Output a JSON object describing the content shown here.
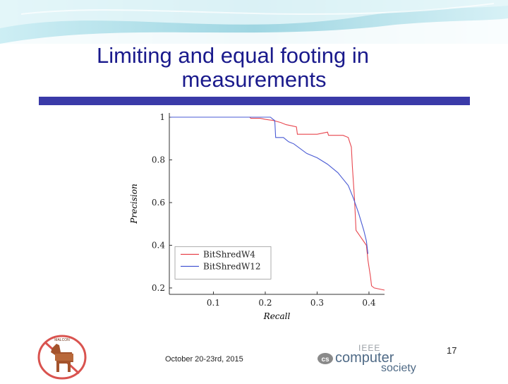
{
  "slide": {
    "title_line1": "Limiting and equal footing in",
    "title_line2": "measurements",
    "footer_date": "October 20-23rd, 2015",
    "slide_number": "17",
    "logo_left_text": "MALCON",
    "logo_right_top": "IEEE",
    "logo_right_mid": "computer",
    "logo_right_bottom": "society",
    "logo_right_badge": "cs",
    "colors": {
      "title": "#1a1a8c",
      "bar": "#3a3aa8",
      "banner": "#bfe6ee"
    }
  },
  "chart_data": {
    "type": "line",
    "xlabel": "Recall",
    "ylabel": "Precision",
    "xlim": [
      0.015,
      0.43
    ],
    "ylim": [
      0.17,
      1.02
    ],
    "xticks": [
      0.1,
      0.2,
      0.3,
      0.4
    ],
    "xtick_labels": [
      "0.1",
      "0.2",
      "0.3",
      "0.4"
    ],
    "yticks": [
      0.2,
      0.4,
      0.6,
      0.8,
      1.0
    ],
    "ytick_labels": [
      "0.2",
      "0.4",
      "0.6",
      "0.8",
      "1"
    ],
    "grid": false,
    "legend_position": "bottom-left",
    "series": [
      {
        "name": "BitShredW4",
        "color": "#e8474f",
        "x": [
          0.017,
          0.17,
          0.172,
          0.19,
          0.2,
          0.215,
          0.23,
          0.24,
          0.25,
          0.26,
          0.262,
          0.3,
          0.31,
          0.32,
          0.322,
          0.35,
          0.355,
          0.36,
          0.362,
          0.366,
          0.368,
          0.372,
          0.375,
          0.395,
          0.398,
          0.403,
          0.405,
          0.41,
          0.43
        ],
        "y": [
          1.0,
          1.0,
          0.995,
          0.995,
          0.99,
          0.985,
          0.975,
          0.965,
          0.96,
          0.955,
          0.92,
          0.92,
          0.925,
          0.93,
          0.915,
          0.915,
          0.91,
          0.905,
          0.89,
          0.86,
          0.77,
          0.62,
          0.47,
          0.4,
          0.33,
          0.25,
          0.21,
          0.2,
          0.19
        ]
      },
      {
        "name": "BitShredW12",
        "color": "#4a5bd4",
        "x": [
          0.017,
          0.21,
          0.215,
          0.218,
          0.2185,
          0.22,
          0.235,
          0.245,
          0.255,
          0.28,
          0.3,
          0.32,
          0.34,
          0.35,
          0.36,
          0.37,
          0.38,
          0.39,
          0.395,
          0.398
        ],
        "y": [
          1.0,
          1.0,
          0.99,
          0.985,
          0.975,
          0.905,
          0.905,
          0.885,
          0.875,
          0.83,
          0.81,
          0.78,
          0.74,
          0.71,
          0.68,
          0.62,
          0.55,
          0.47,
          0.42,
          0.36
        ]
      }
    ]
  }
}
